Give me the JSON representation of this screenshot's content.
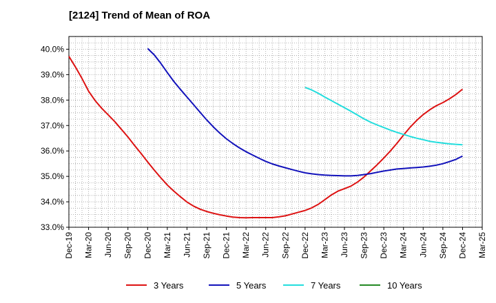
{
  "chart_data": {
    "type": "line",
    "title": "[2124]  Trend of Mean of ROA",
    "xlabel": "",
    "ylabel": "",
    "x_ticks": [
      "Dec-19",
      "Mar-20",
      "Jun-20",
      "Sep-20",
      "Dec-20",
      "Mar-21",
      "Jun-21",
      "Sep-21",
      "Dec-21",
      "Mar-22",
      "Jun-22",
      "Sep-22",
      "Dec-22",
      "Mar-23",
      "Jun-23",
      "Sep-23",
      "Dec-23",
      "Mar-24",
      "Jun-24",
      "Sep-24",
      "Dec-24",
      "Mar-25"
    ],
    "y_ticks": [
      "33.0%",
      "34.0%",
      "35.0%",
      "36.0%",
      "37.0%",
      "38.0%",
      "39.0%",
      "40.0%"
    ],
    "ylim": [
      33.0,
      40.5
    ],
    "grid": true,
    "legend_position": "bottom",
    "series": [
      {
        "name": "3 Years",
        "color": "#dd1111",
        "points": [
          [
            "Dec-19",
            39.72
          ],
          [
            "Jan-20",
            39.3
          ],
          [
            "Feb-20",
            38.85
          ],
          [
            "Mar-20",
            38.35
          ],
          [
            "Apr-20",
            37.98
          ],
          [
            "May-20",
            37.68
          ],
          [
            "Jun-20",
            37.42
          ],
          [
            "Jul-20",
            37.15
          ],
          [
            "Aug-20",
            36.85
          ],
          [
            "Sep-20",
            36.55
          ],
          [
            "Oct-20",
            36.22
          ],
          [
            "Nov-20",
            35.9
          ],
          [
            "Dec-20",
            35.57
          ],
          [
            "Jan-21",
            35.25
          ],
          [
            "Feb-21",
            34.95
          ],
          [
            "Mar-21",
            34.66
          ],
          [
            "Apr-21",
            34.42
          ],
          [
            "May-21",
            34.2
          ],
          [
            "Jun-21",
            33.99
          ],
          [
            "Jul-21",
            33.83
          ],
          [
            "Aug-21",
            33.71
          ],
          [
            "Sep-21",
            33.62
          ],
          [
            "Oct-21",
            33.55
          ],
          [
            "Nov-21",
            33.49
          ],
          [
            "Dec-21",
            33.44
          ],
          [
            "Jan-22",
            33.4
          ],
          [
            "Feb-22",
            33.38
          ],
          [
            "Mar-22",
            33.37
          ],
          [
            "Apr-22",
            33.38
          ],
          [
            "May-22",
            33.38
          ],
          [
            "Jun-22",
            33.38
          ],
          [
            "Jul-22",
            33.38
          ],
          [
            "Aug-22",
            33.41
          ],
          [
            "Sep-22",
            33.45
          ],
          [
            "Oct-22",
            33.52
          ],
          [
            "Nov-22",
            33.59
          ],
          [
            "Dec-22",
            33.66
          ],
          [
            "Jan-23",
            33.76
          ],
          [
            "Feb-23",
            33.9
          ],
          [
            "Mar-23",
            34.08
          ],
          [
            "Apr-23",
            34.27
          ],
          [
            "May-23",
            34.42
          ],
          [
            "Jun-23",
            34.52
          ],
          [
            "Jul-23",
            34.62
          ],
          [
            "Aug-23",
            34.78
          ],
          [
            "Sep-23",
            34.98
          ],
          [
            "Oct-23",
            35.22
          ],
          [
            "Nov-23",
            35.46
          ],
          [
            "Dec-23",
            35.72
          ],
          [
            "Jan-24",
            36.0
          ],
          [
            "Feb-24",
            36.3
          ],
          [
            "Mar-24",
            36.62
          ],
          [
            "Apr-24",
            36.93
          ],
          [
            "May-24",
            37.2
          ],
          [
            "Jun-24",
            37.43
          ],
          [
            "Jul-24",
            37.62
          ],
          [
            "Aug-24",
            37.78
          ],
          [
            "Sep-24",
            37.9
          ],
          [
            "Oct-24",
            38.05
          ],
          [
            "Nov-24",
            38.22
          ],
          [
            "Dec-24",
            38.43
          ]
        ]
      },
      {
        "name": "5 Years",
        "color": "#1111bb",
        "points": [
          [
            "Dec-20",
            40.03
          ],
          [
            "Jan-21",
            39.78
          ],
          [
            "Feb-21",
            39.45
          ],
          [
            "Mar-21",
            39.08
          ],
          [
            "Apr-21",
            38.73
          ],
          [
            "May-21",
            38.42
          ],
          [
            "Jun-21",
            38.12
          ],
          [
            "Jul-21",
            37.82
          ],
          [
            "Aug-21",
            37.52
          ],
          [
            "Sep-21",
            37.22
          ],
          [
            "Oct-21",
            36.95
          ],
          [
            "Nov-21",
            36.7
          ],
          [
            "Dec-21",
            36.48
          ],
          [
            "Jan-22",
            36.29
          ],
          [
            "Feb-22",
            36.12
          ],
          [
            "Mar-22",
            35.97
          ],
          [
            "Apr-22",
            35.84
          ],
          [
            "May-22",
            35.71
          ],
          [
            "Jun-22",
            35.59
          ],
          [
            "Jul-22",
            35.49
          ],
          [
            "Aug-22",
            35.41
          ],
          [
            "Sep-22",
            35.34
          ],
          [
            "Oct-22",
            35.27
          ],
          [
            "Nov-22",
            35.2
          ],
          [
            "Dec-22",
            35.14
          ],
          [
            "Jan-23",
            35.1
          ],
          [
            "Feb-23",
            35.07
          ],
          [
            "Mar-23",
            35.05
          ],
          [
            "Apr-23",
            35.04
          ],
          [
            "May-23",
            35.03
          ],
          [
            "Jun-23",
            35.02
          ],
          [
            "Jul-23",
            35.02
          ],
          [
            "Aug-23",
            35.04
          ],
          [
            "Sep-23",
            35.07
          ],
          [
            "Oct-23",
            35.11
          ],
          [
            "Nov-23",
            35.16
          ],
          [
            "Dec-23",
            35.21
          ],
          [
            "Jan-24",
            35.25
          ],
          [
            "Feb-24",
            35.29
          ],
          [
            "Mar-24",
            35.31
          ],
          [
            "Apr-24",
            35.33
          ],
          [
            "May-24",
            35.35
          ],
          [
            "Jun-24",
            35.37
          ],
          [
            "Jul-24",
            35.4
          ],
          [
            "Aug-24",
            35.44
          ],
          [
            "Sep-24",
            35.5
          ],
          [
            "Oct-24",
            35.58
          ],
          [
            "Nov-24",
            35.67
          ],
          [
            "Dec-24",
            35.8
          ]
        ]
      },
      {
        "name": "7 Years",
        "color": "#22dddd",
        "points": [
          [
            "Dec-22",
            38.5
          ],
          [
            "Jan-23",
            38.4
          ],
          [
            "Feb-23",
            38.27
          ],
          [
            "Mar-23",
            38.12
          ],
          [
            "Apr-23",
            37.98
          ],
          [
            "May-23",
            37.84
          ],
          [
            "Jun-23",
            37.7
          ],
          [
            "Jul-23",
            37.56
          ],
          [
            "Aug-23",
            37.41
          ],
          [
            "Sep-23",
            37.26
          ],
          [
            "Oct-23",
            37.13
          ],
          [
            "Nov-23",
            37.02
          ],
          [
            "Dec-23",
            36.92
          ],
          [
            "Jan-24",
            36.82
          ],
          [
            "Feb-24",
            36.73
          ],
          [
            "Mar-24",
            36.65
          ],
          [
            "Apr-24",
            36.57
          ],
          [
            "May-24",
            36.5
          ],
          [
            "Jun-24",
            36.44
          ],
          [
            "Jul-24",
            36.38
          ],
          [
            "Aug-24",
            36.34
          ],
          [
            "Sep-24",
            36.31
          ],
          [
            "Oct-24",
            36.28
          ],
          [
            "Nov-24",
            36.26
          ],
          [
            "Dec-24",
            36.24
          ]
        ]
      },
      {
        "name": "10 Years",
        "color": "#228822",
        "points": []
      }
    ]
  }
}
